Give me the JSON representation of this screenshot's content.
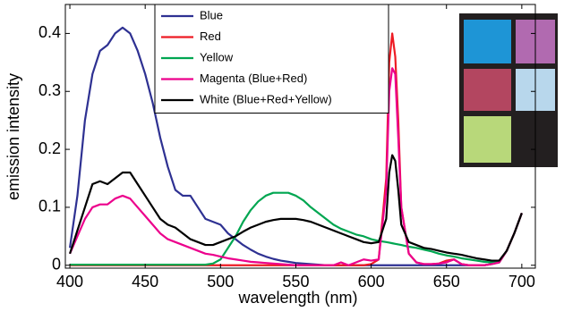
{
  "chart_data": {
    "type": "line",
    "xlabel": "wavelength (nm)",
    "ylabel": "emission intensity",
    "xlim": [
      397,
      709
    ],
    "ylim": [
      -0.005,
      0.45
    ],
    "xticks": [
      400,
      450,
      500,
      550,
      600,
      650,
      700
    ],
    "yticks": [
      0,
      0.1,
      0.2,
      0.3,
      0.4
    ],
    "grid": false,
    "legend": "top",
    "x": [
      400,
      405,
      410,
      415,
      420,
      425,
      430,
      435,
      440,
      445,
      450,
      455,
      460,
      465,
      470,
      475,
      480,
      485,
      490,
      495,
      500,
      505,
      510,
      515,
      520,
      525,
      530,
      535,
      540,
      545,
      550,
      555,
      560,
      565,
      570,
      575,
      580,
      585,
      590,
      595,
      600,
      605,
      610,
      612,
      614,
      616,
      618,
      620,
      625,
      630,
      635,
      640,
      645,
      650,
      655,
      660,
      665,
      670,
      675,
      680,
      685,
      690,
      695,
      700
    ],
    "series": [
      {
        "name": "Blue",
        "color": "#2e3192",
        "values": [
          0.03,
          0.12,
          0.25,
          0.33,
          0.37,
          0.38,
          0.4,
          0.41,
          0.4,
          0.37,
          0.33,
          0.28,
          0.22,
          0.17,
          0.13,
          0.12,
          0.12,
          0.1,
          0.08,
          0.075,
          0.07,
          0.055,
          0.045,
          0.035,
          0.027,
          0.02,
          0.015,
          0.011,
          0.008,
          0.006,
          0.004,
          0.003,
          0.002,
          0.001,
          0,
          0,
          0,
          0,
          0,
          0,
          0,
          0,
          0,
          0,
          0,
          0,
          0,
          0,
          0,
          0,
          0,
          0,
          0,
          0,
          0,
          0,
          0,
          0,
          0,
          0.002,
          0.005,
          0.025,
          0.055,
          0.09
        ]
      },
      {
        "name": "Red",
        "color": "#ed1c24",
        "values": [
          0,
          0,
          0,
          0,
          0,
          0,
          0,
          0,
          0,
          0,
          0,
          0,
          0,
          0,
          0,
          0,
          0,
          0,
          0,
          0,
          0,
          0,
          0,
          0,
          0,
          0,
          0,
          0,
          0,
          0,
          0,
          0,
          0,
          0,
          0,
          0,
          0,
          0,
          0,
          0,
          0.002,
          0.01,
          0.15,
          0.35,
          0.4,
          0.36,
          0.25,
          0.1,
          0.02,
          0.005,
          0.002,
          0.002,
          0.003,
          0.008,
          0.01,
          0.002,
          0,
          0,
          0,
          0.002,
          0.005,
          0.025,
          0.055,
          0.09
        ]
      },
      {
        "name": "Yellow",
        "color": "#00a651",
        "values": [
          0.001,
          0.001,
          0.001,
          0.001,
          0.001,
          0.001,
          0.001,
          0.001,
          0.001,
          0.001,
          0.001,
          0.001,
          0.001,
          0.001,
          0.001,
          0.001,
          0.001,
          0.001,
          0.001,
          0.003,
          0.01,
          0.03,
          0.05,
          0.075,
          0.095,
          0.11,
          0.12,
          0.125,
          0.125,
          0.125,
          0.12,
          0.112,
          0.1,
          0.09,
          0.08,
          0.07,
          0.063,
          0.058,
          0.053,
          0.05,
          0.045,
          0.042,
          0.04,
          0.039,
          0.038,
          0.037,
          0.036,
          0.035,
          0.032,
          0.03,
          0.027,
          0.024,
          0.02,
          0.017,
          0.015,
          0.012,
          0.01,
          0.008,
          0.006,
          0.005,
          0.005,
          0.025,
          0.055,
          0.09
        ]
      },
      {
        "name": "Magenta (Blue+Red)",
        "color": "#ec008c",
        "values": [
          0.02,
          0.05,
          0.08,
          0.1,
          0.105,
          0.105,
          0.115,
          0.12,
          0.115,
          0.1,
          0.085,
          0.07,
          0.055,
          0.045,
          0.04,
          0.035,
          0.03,
          0.025,
          0.02,
          0.018,
          0.015,
          0.012,
          0.01,
          0.008,
          0.006,
          0.005,
          0.004,
          0.003,
          0.002,
          0.001,
          0,
          0,
          0,
          0,
          0,
          0,
          0.005,
          0,
          0.005,
          0.01,
          0.008,
          0.01,
          0.13,
          0.3,
          0.34,
          0.33,
          0.22,
          0.1,
          0.02,
          0.005,
          0.002,
          0.002,
          0.003,
          0.005,
          0.01,
          0.002,
          0,
          0,
          0,
          0.002,
          0.005,
          0.025,
          0.055,
          0.09
        ]
      },
      {
        "name": "White (Blue+Red+Yellow)",
        "color": "#000000",
        "values": [
          0.02,
          0.06,
          0.1,
          0.14,
          0.145,
          0.14,
          0.15,
          0.16,
          0.16,
          0.14,
          0.12,
          0.1,
          0.08,
          0.07,
          0.065,
          0.055,
          0.045,
          0.04,
          0.035,
          0.035,
          0.04,
          0.045,
          0.05,
          0.058,
          0.065,
          0.07,
          0.075,
          0.078,
          0.08,
          0.08,
          0.08,
          0.078,
          0.075,
          0.07,
          0.065,
          0.06,
          0.055,
          0.05,
          0.045,
          0.04,
          0.038,
          0.04,
          0.08,
          0.16,
          0.19,
          0.18,
          0.13,
          0.07,
          0.04,
          0.035,
          0.03,
          0.028,
          0.025,
          0.022,
          0.02,
          0.018,
          0.015,
          0.012,
          0.01,
          0.008,
          0.008,
          0.025,
          0.055,
          0.09
        ]
      }
    ]
  }
}
